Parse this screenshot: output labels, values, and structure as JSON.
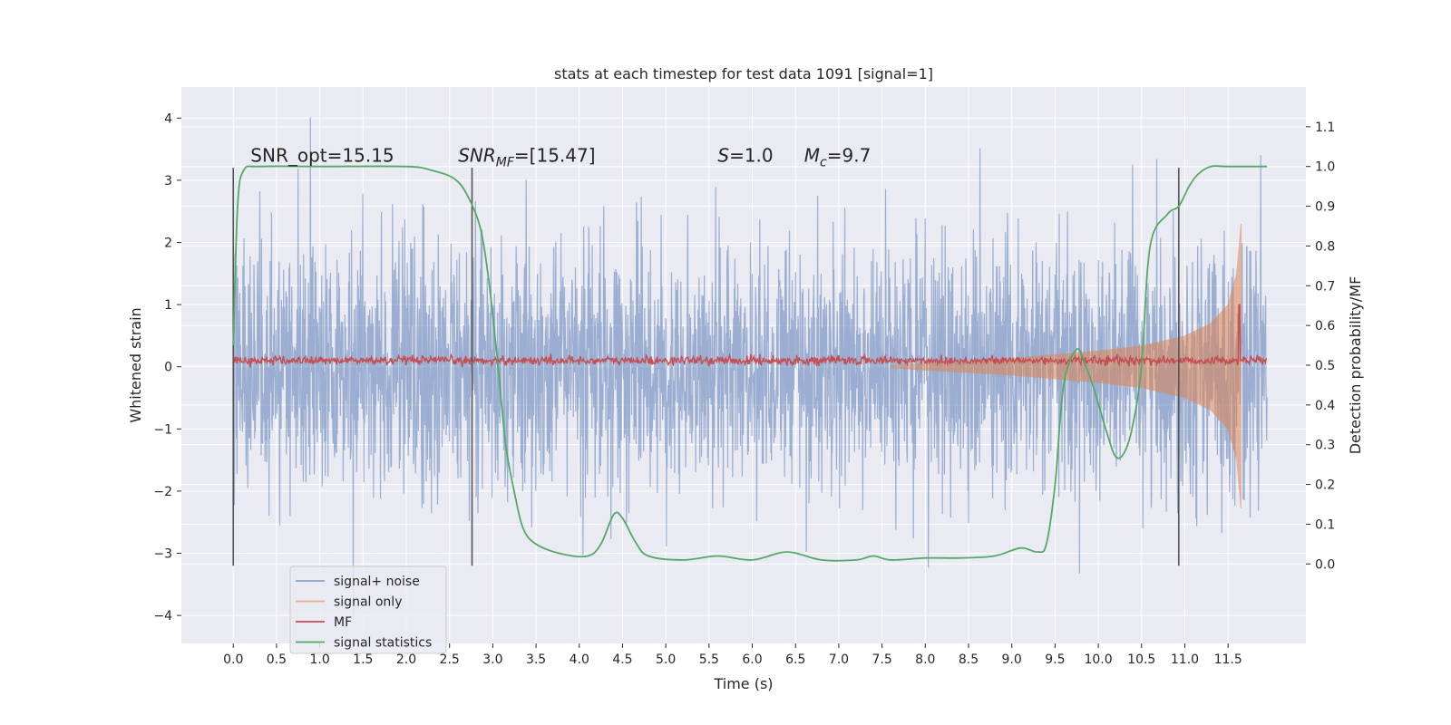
{
  "chart_data": {
    "type": "line",
    "title": "stats at each timestep for test data 1091 [signal=1]",
    "xlabel": "Time (s)",
    "ylabel": "Whitened strain",
    "ylabel_right": "Detection probability/MF",
    "xlim": [
      -0.6,
      12.4
    ],
    "ylim": [
      -4.45,
      4.5
    ],
    "ylim_right": [
      -0.2,
      1.2
    ],
    "x_ticks": [
      0.0,
      0.5,
      1.0,
      1.5,
      2.0,
      2.5,
      3.0,
      3.5,
      4.0,
      4.5,
      5.0,
      5.5,
      6.0,
      6.5,
      7.0,
      7.5,
      8.0,
      8.5,
      9.0,
      9.5,
      10.0,
      10.5,
      11.0,
      11.5
    ],
    "x_tick_labels": [
      "0.0",
      "0.5",
      "1.0",
      "1.5",
      "2.0",
      "2.5",
      "3.0",
      "3.5",
      "4.0",
      "4.5",
      "5.0",
      "5.5",
      "6.0",
      "6.5",
      "7.0",
      "7.5",
      "8.0",
      "8.5",
      "9.0",
      "9.5",
      "10.0",
      "10.5",
      "11.0",
      "11.5"
    ],
    "y_ticks": [
      -4,
      -3,
      -2,
      -1,
      0,
      1,
      2,
      3,
      4
    ],
    "y_tick_labels": [
      "−4",
      "−3",
      "−2",
      "−1",
      "0",
      "1",
      "2",
      "3",
      "4"
    ],
    "y_right_ticks": [
      0.0,
      0.1,
      0.2,
      0.3,
      0.4,
      0.5,
      0.6,
      0.7,
      0.8,
      0.9,
      1.0,
      1.1
    ],
    "y_right_tick_labels": [
      "0.0",
      "0.1",
      "0.2",
      "0.3",
      "0.4",
      "0.5",
      "0.6",
      "0.7",
      "0.8",
      "0.9",
      "1.0",
      "1.1"
    ],
    "grid": true,
    "legend_position": "lower-left",
    "annotations": [
      {
        "text": "SNR_opt=15.15",
        "x": 0.2,
        "y": 3.3
      },
      {
        "text": "SNR",
        "sub": "MF",
        "rest": "=[15.47]",
        "x": 2.6,
        "y": 3.3
      },
      {
        "text": "S",
        "rest": "=1.0",
        "x": 5.6,
        "y": 3.3
      },
      {
        "text": "M",
        "sub": "c",
        "rest": "=9.7",
        "x": 6.6,
        "y": 3.3
      }
    ],
    "vlines": [
      {
        "x": 0.0,
        "ymin": -3.2,
        "ymax": 3.2
      },
      {
        "x": 2.76,
        "ymin": -3.2,
        "ymax": 3.2
      },
      {
        "x": 10.93,
        "ymin": -3.2,
        "ymax": 3.2
      }
    ],
    "series": [
      {
        "name": "signal+ noise",
        "color": "#4c72b0",
        "axis": "left",
        "x_range": [
          0.0,
          11.95
        ],
        "typical_peak_abs": [
          2.2,
          4.1
        ],
        "noise_std": 1.0
      },
      {
        "name": "signal only",
        "color": "#dd8452",
        "axis": "left",
        "x": [
          7.6,
          8.0,
          8.5,
          9.0,
          9.5,
          10.0,
          10.5,
          11.0,
          11.3,
          11.5,
          11.6,
          11.65
        ],
        "envelope": [
          0.02,
          0.06,
          0.1,
          0.14,
          0.2,
          0.26,
          0.34,
          0.5,
          0.7,
          1.0,
          1.5,
          2.3
        ]
      },
      {
        "name": "MF",
        "color": "#c44e52",
        "axis": "left",
        "baseline": 0.1,
        "x_range": [
          0.0,
          11.95
        ],
        "peak": {
          "x": 11.63,
          "y": 1.0
        }
      },
      {
        "name": "signal statistics",
        "color": "#55a868",
        "axis": "right",
        "x": [
          0.0,
          0.05,
          0.12,
          0.3,
          1.0,
          2.0,
          2.3,
          2.55,
          2.7,
          2.85,
          2.95,
          3.05,
          3.15,
          3.25,
          3.35,
          3.5,
          3.8,
          4.1,
          4.25,
          4.4,
          4.5,
          4.65,
          4.8,
          5.2,
          5.6,
          6.0,
          6.4,
          6.8,
          7.2,
          7.4,
          7.6,
          8.0,
          8.4,
          8.8,
          9.1,
          9.3,
          9.4,
          9.5,
          9.6,
          9.75,
          9.85,
          9.95,
          10.1,
          10.2,
          10.3,
          10.4,
          10.5,
          10.6,
          10.8,
          10.93,
          11.05,
          11.15,
          11.3,
          11.5,
          11.95
        ],
        "y": [
          0.55,
          0.9,
          0.99,
          1.0,
          1.0,
          1.0,
          0.99,
          0.97,
          0.93,
          0.85,
          0.72,
          0.52,
          0.3,
          0.18,
          0.09,
          0.05,
          0.025,
          0.02,
          0.05,
          0.125,
          0.115,
          0.055,
          0.02,
          0.01,
          0.02,
          0.01,
          0.03,
          0.01,
          0.01,
          0.02,
          0.01,
          0.015,
          0.015,
          0.02,
          0.04,
          0.03,
          0.05,
          0.2,
          0.45,
          0.54,
          0.5,
          0.44,
          0.33,
          0.27,
          0.28,
          0.35,
          0.5,
          0.8,
          0.88,
          0.9,
          0.95,
          0.98,
          1.0,
          1.0,
          1.0
        ]
      }
    ]
  }
}
